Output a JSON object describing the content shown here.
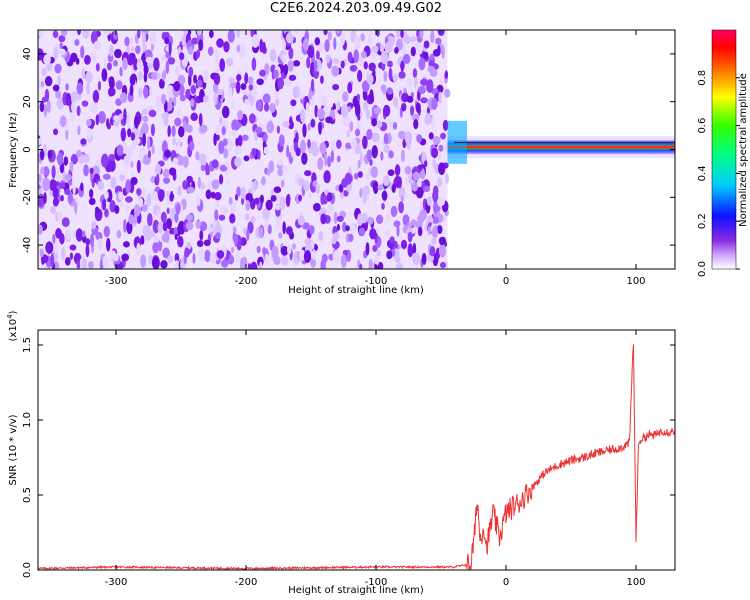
{
  "title": "C2E6.2024.203.09.49.G02",
  "chart_data": [
    {
      "type": "heatmap",
      "name": "spectrogram",
      "xlabel": "Height of straight line (km)",
      "ylabel": "Frequency (Hz)",
      "xlim": [
        -360,
        130
      ],
      "ylim": [
        -50,
        50
      ],
      "xticks": [
        -300,
        -200,
        -100,
        0,
        100
      ],
      "yticks": [
        -40,
        -20,
        0,
        20,
        40
      ],
      "noise_region_x": [
        -360,
        -45
      ],
      "signal_band": {
        "x_start": -45,
        "x_end": 130,
        "center_hz": 1,
        "peak_near_x": 60
      },
      "colorbar": {
        "label": "Normalized spectral amplitude",
        "range": [
          0.0,
          1.0
        ],
        "ticks": [
          0.0,
          0.2,
          0.4,
          0.6,
          0.8
        ],
        "tick_labels": [
          "0.0",
          "0.2",
          "0.4",
          "0.6",
          "0.8"
        ]
      },
      "grid": false
    },
    {
      "type": "line",
      "name": "snr",
      "xlabel": "Height of straight line (km)",
      "ylabel": "SNR (10 * v/v)",
      "scale_label": "(x10^4)",
      "xlim": [
        -360,
        130
      ],
      "ylim": [
        0.0,
        1.6
      ],
      "xticks": [
        -300,
        -200,
        -100,
        0,
        100
      ],
      "yticks": [
        0.0,
        0.5,
        1.0,
        1.5
      ],
      "ytick_labels": [
        "0.0",
        "0.5",
        "1.0",
        "1.5"
      ],
      "color": "#ee3333",
      "x": [
        -360,
        -300,
        -200,
        -100,
        -40,
        -27,
        -24,
        -22,
        -20,
        -17,
        -15,
        -12,
        -10,
        -5,
        0,
        5,
        10,
        20,
        30,
        40,
        50,
        60,
        70,
        80,
        90,
        95,
        98,
        100,
        102,
        105,
        110,
        115,
        120,
        125,
        130
      ],
      "y": [
        0.01,
        0.02,
        0.01,
        0.02,
        0.02,
        0.04,
        0.25,
        0.48,
        0.2,
        0.3,
        0.15,
        0.28,
        0.38,
        0.22,
        0.38,
        0.42,
        0.45,
        0.55,
        0.65,
        0.7,
        0.73,
        0.75,
        0.78,
        0.8,
        0.82,
        0.85,
        1.55,
        0.2,
        0.85,
        0.88,
        0.9,
        0.9,
        0.93,
        0.92,
        0.93
      ],
      "grid": false
    }
  ]
}
